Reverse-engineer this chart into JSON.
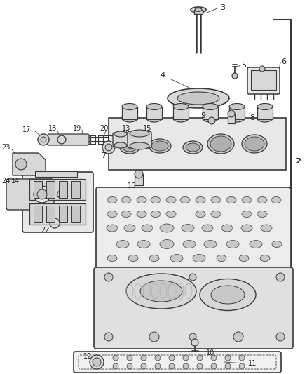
{
  "bg_color": "#ffffff",
  "lc": "#3a3a3a",
  "figsize": [
    4.39,
    5.33
  ],
  "dpi": 100,
  "xlim": [
    0,
    439
  ],
  "ylim": [
    0,
    533
  ]
}
